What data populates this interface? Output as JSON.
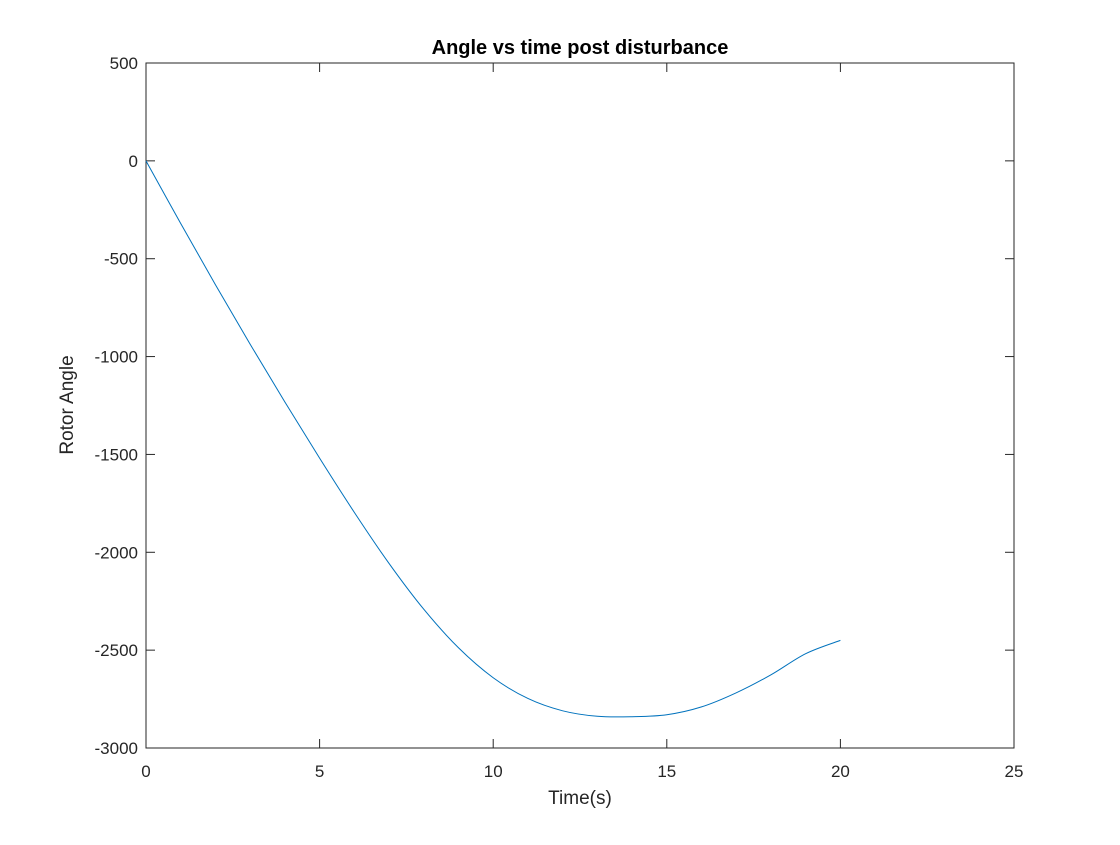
{
  "chart_data": {
    "type": "line",
    "title": "Angle vs time post disturbance",
    "xlabel": "Time(s)",
    "ylabel": "Rotor Angle",
    "xlim": [
      0,
      25
    ],
    "ylim": [
      -3000,
      500
    ],
    "xticks": [
      0,
      5,
      10,
      15,
      20,
      25
    ],
    "yticks": [
      500,
      0,
      -500,
      -1000,
      -1500,
      -2000,
      -2500,
      -3000
    ],
    "grid": false,
    "box": true,
    "series": [
      {
        "color": "#0072BD",
        "x": [
          0,
          1,
          2,
          3,
          4,
          5,
          6,
          7,
          8,
          9,
          10,
          11,
          12,
          13,
          14,
          15,
          16,
          17,
          18,
          19,
          20
        ],
        "y": [
          0,
          -320,
          -633,
          -937,
          -1232,
          -1519,
          -1796,
          -2057,
          -2291,
          -2488,
          -2641,
          -2747,
          -2810,
          -2838,
          -2840,
          -2830,
          -2790,
          -2718,
          -2626,
          -2518,
          -2450
        ]
      }
    ]
  }
}
